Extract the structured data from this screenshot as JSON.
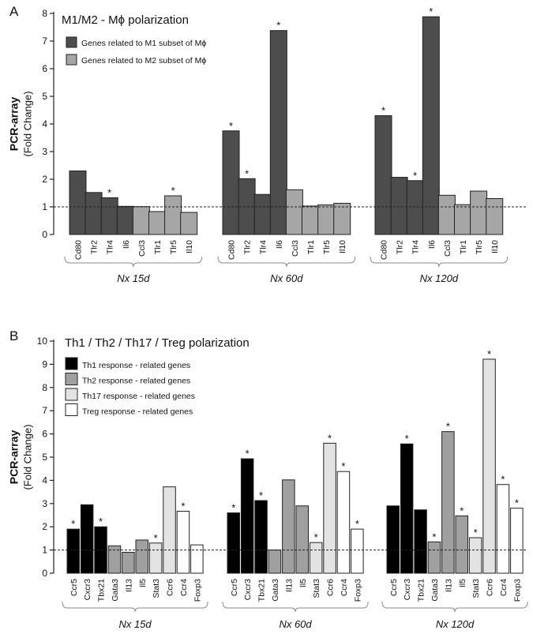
{
  "chart_data": [
    {
      "type": "bar",
      "panel": "A",
      "title": "M1/M2 - Mϕ polarization",
      "ylabel": "PCR-array",
      "ylabel_sub": "(Fold Change)",
      "ylim": [
        0,
        8
      ],
      "yticks": [
        0,
        1,
        2,
        3,
        4,
        5,
        6,
        7,
        8
      ],
      "reference_line": 1,
      "legend": [
        {
          "label": "Genes related to M1 subset of Mϕ",
          "color": "#4d4d4d"
        },
        {
          "label": "Genes related to M2 subset of Mϕ",
          "color": "#a6a6a6"
        }
      ],
      "groups": [
        {
          "label": "Nx 15d",
          "bars": [
            {
              "gene": "Cd80",
              "value": 2.3,
              "subset": 0,
              "sig": false
            },
            {
              "gene": "Tlr2",
              "value": 1.52,
              "subset": 0,
              "sig": false
            },
            {
              "gene": "Tlr4",
              "value": 1.33,
              "subset": 0,
              "sig": true
            },
            {
              "gene": "Il6",
              "value": 1.02,
              "subset": 0,
              "sig": false
            },
            {
              "gene": "Ccl3",
              "value": 1.01,
              "subset": 1,
              "sig": false
            },
            {
              "gene": "Tlr1",
              "value": 0.83,
              "subset": 1,
              "sig": false
            },
            {
              "gene": "Tlr5",
              "value": 1.4,
              "subset": 1,
              "sig": true
            },
            {
              "gene": "Il10",
              "value": 0.8,
              "subset": 1,
              "sig": false
            }
          ]
        },
        {
          "label": "Nx 60d",
          "bars": [
            {
              "gene": "Cd80",
              "value": 3.75,
              "subset": 0,
              "sig": true
            },
            {
              "gene": "Tlr2",
              "value": 2.02,
              "subset": 0,
              "sig": true
            },
            {
              "gene": "Tlr4",
              "value": 1.45,
              "subset": 0,
              "sig": false
            },
            {
              "gene": "Il6",
              "value": 7.38,
              "subset": 0,
              "sig": true
            },
            {
              "gene": "Ccl3",
              "value": 1.62,
              "subset": 1,
              "sig": false
            },
            {
              "gene": "Tlr1",
              "value": 1.03,
              "subset": 1,
              "sig": false
            },
            {
              "gene": "Tlr5",
              "value": 1.07,
              "subset": 1,
              "sig": false
            },
            {
              "gene": "Il10",
              "value": 1.13,
              "subset": 1,
              "sig": false
            }
          ]
        },
        {
          "label": "Nx 120d",
          "bars": [
            {
              "gene": "Cd80",
              "value": 4.3,
              "subset": 0,
              "sig": true
            },
            {
              "gene": "Tlr2",
              "value": 2.07,
              "subset": 0,
              "sig": false
            },
            {
              "gene": "Tlr4",
              "value": 1.95,
              "subset": 0,
              "sig": true
            },
            {
              "gene": "Il6",
              "value": 7.88,
              "subset": 0,
              "sig": true
            },
            {
              "gene": "Ccl3",
              "value": 1.42,
              "subset": 1,
              "sig": false
            },
            {
              "gene": "Tlr1",
              "value": 1.08,
              "subset": 1,
              "sig": false
            },
            {
              "gene": "Tlr5",
              "value": 1.57,
              "subset": 1,
              "sig": false
            },
            {
              "gene": "Il10",
              "value": 1.3,
              "subset": 1,
              "sig": false
            }
          ]
        }
      ]
    },
    {
      "type": "bar",
      "panel": "B",
      "title": "Th1 / Th2 / Th17 / Treg polarization",
      "ylabel": "PCR-array",
      "ylabel_sub": "(Fold Change)",
      "ylim": [
        0,
        10
      ],
      "yticks": [
        0,
        1,
        2,
        3,
        4,
        5,
        6,
        7,
        8,
        9,
        10
      ],
      "reference_line": 1,
      "legend": [
        {
          "label": "Th1 response - related genes",
          "color": "#000000"
        },
        {
          "label": "Th2 response - related genes",
          "color": "#a0a0a0"
        },
        {
          "label": "Th17 response - related genes",
          "color": "#e3e3e3"
        },
        {
          "label": "Treg response - related genes",
          "color": "#ffffff"
        }
      ],
      "groups": [
        {
          "label": "Nx 15d",
          "bars": [
            {
              "gene": "Ccr5",
              "value": 1.9,
              "subset": 0,
              "sig": true
            },
            {
              "gene": "Cxcr3",
              "value": 2.95,
              "subset": 0,
              "sig": false
            },
            {
              "gene": "Tbx21",
              "value": 2.0,
              "subset": 0,
              "sig": true
            },
            {
              "gene": "Gata3",
              "value": 1.18,
              "subset": 1,
              "sig": false
            },
            {
              "gene": "Il13",
              "value": 0.9,
              "subset": 1,
              "sig": false
            },
            {
              "gene": "Il5",
              "value": 1.43,
              "subset": 1,
              "sig": false
            },
            {
              "gene": "Stat3",
              "value": 1.3,
              "subset": 2,
              "sig": true
            },
            {
              "gene": "Ccr6",
              "value": 3.72,
              "subset": 2,
              "sig": false
            },
            {
              "gene": "Ccr4",
              "value": 2.67,
              "subset": 3,
              "sig": true
            },
            {
              "gene": "Foxp3",
              "value": 1.22,
              "subset": 3,
              "sig": false
            }
          ]
        },
        {
          "label": "Nx 60d",
          "bars": [
            {
              "gene": "Ccr5",
              "value": 2.6,
              "subset": 0,
              "sig": true
            },
            {
              "gene": "Cxcr3",
              "value": 4.93,
              "subset": 0,
              "sig": true
            },
            {
              "gene": "Tbx21",
              "value": 3.13,
              "subset": 0,
              "sig": true
            },
            {
              "gene": "Gata3",
              "value": 1.0,
              "subset": 1,
              "sig": false
            },
            {
              "gene": "Il13",
              "value": 4.02,
              "subset": 1,
              "sig": false
            },
            {
              "gene": "Il5",
              "value": 2.9,
              "subset": 1,
              "sig": false
            },
            {
              "gene": "Stat3",
              "value": 1.32,
              "subset": 2,
              "sig": true
            },
            {
              "gene": "Ccr6",
              "value": 5.6,
              "subset": 2,
              "sig": true
            },
            {
              "gene": "Ccr4",
              "value": 4.38,
              "subset": 3,
              "sig": true
            },
            {
              "gene": "Foxp3",
              "value": 1.9,
              "subset": 3,
              "sig": true
            }
          ]
        },
        {
          "label": "Nx 120d",
          "bars": [
            {
              "gene": "Ccr5",
              "value": 2.9,
              "subset": 0,
              "sig": false
            },
            {
              "gene": "Cxcr3",
              "value": 5.57,
              "subset": 0,
              "sig": true
            },
            {
              "gene": "Tbx21",
              "value": 2.73,
              "subset": 0,
              "sig": false
            },
            {
              "gene": "Gata3",
              "value": 1.35,
              "subset": 1,
              "sig": true
            },
            {
              "gene": "Il13",
              "value": 6.1,
              "subset": 1,
              "sig": true
            },
            {
              "gene": "Il5",
              "value": 2.47,
              "subset": 1,
              "sig": true
            },
            {
              "gene": "Stat3",
              "value": 1.53,
              "subset": 2,
              "sig": true
            },
            {
              "gene": "Ccr6",
              "value": 9.22,
              "subset": 2,
              "sig": true
            },
            {
              "gene": "Ccr4",
              "value": 3.82,
              "subset": 3,
              "sig": true
            },
            {
              "gene": "Foxp3",
              "value": 2.8,
              "subset": 3,
              "sig": true
            }
          ]
        }
      ]
    }
  ]
}
